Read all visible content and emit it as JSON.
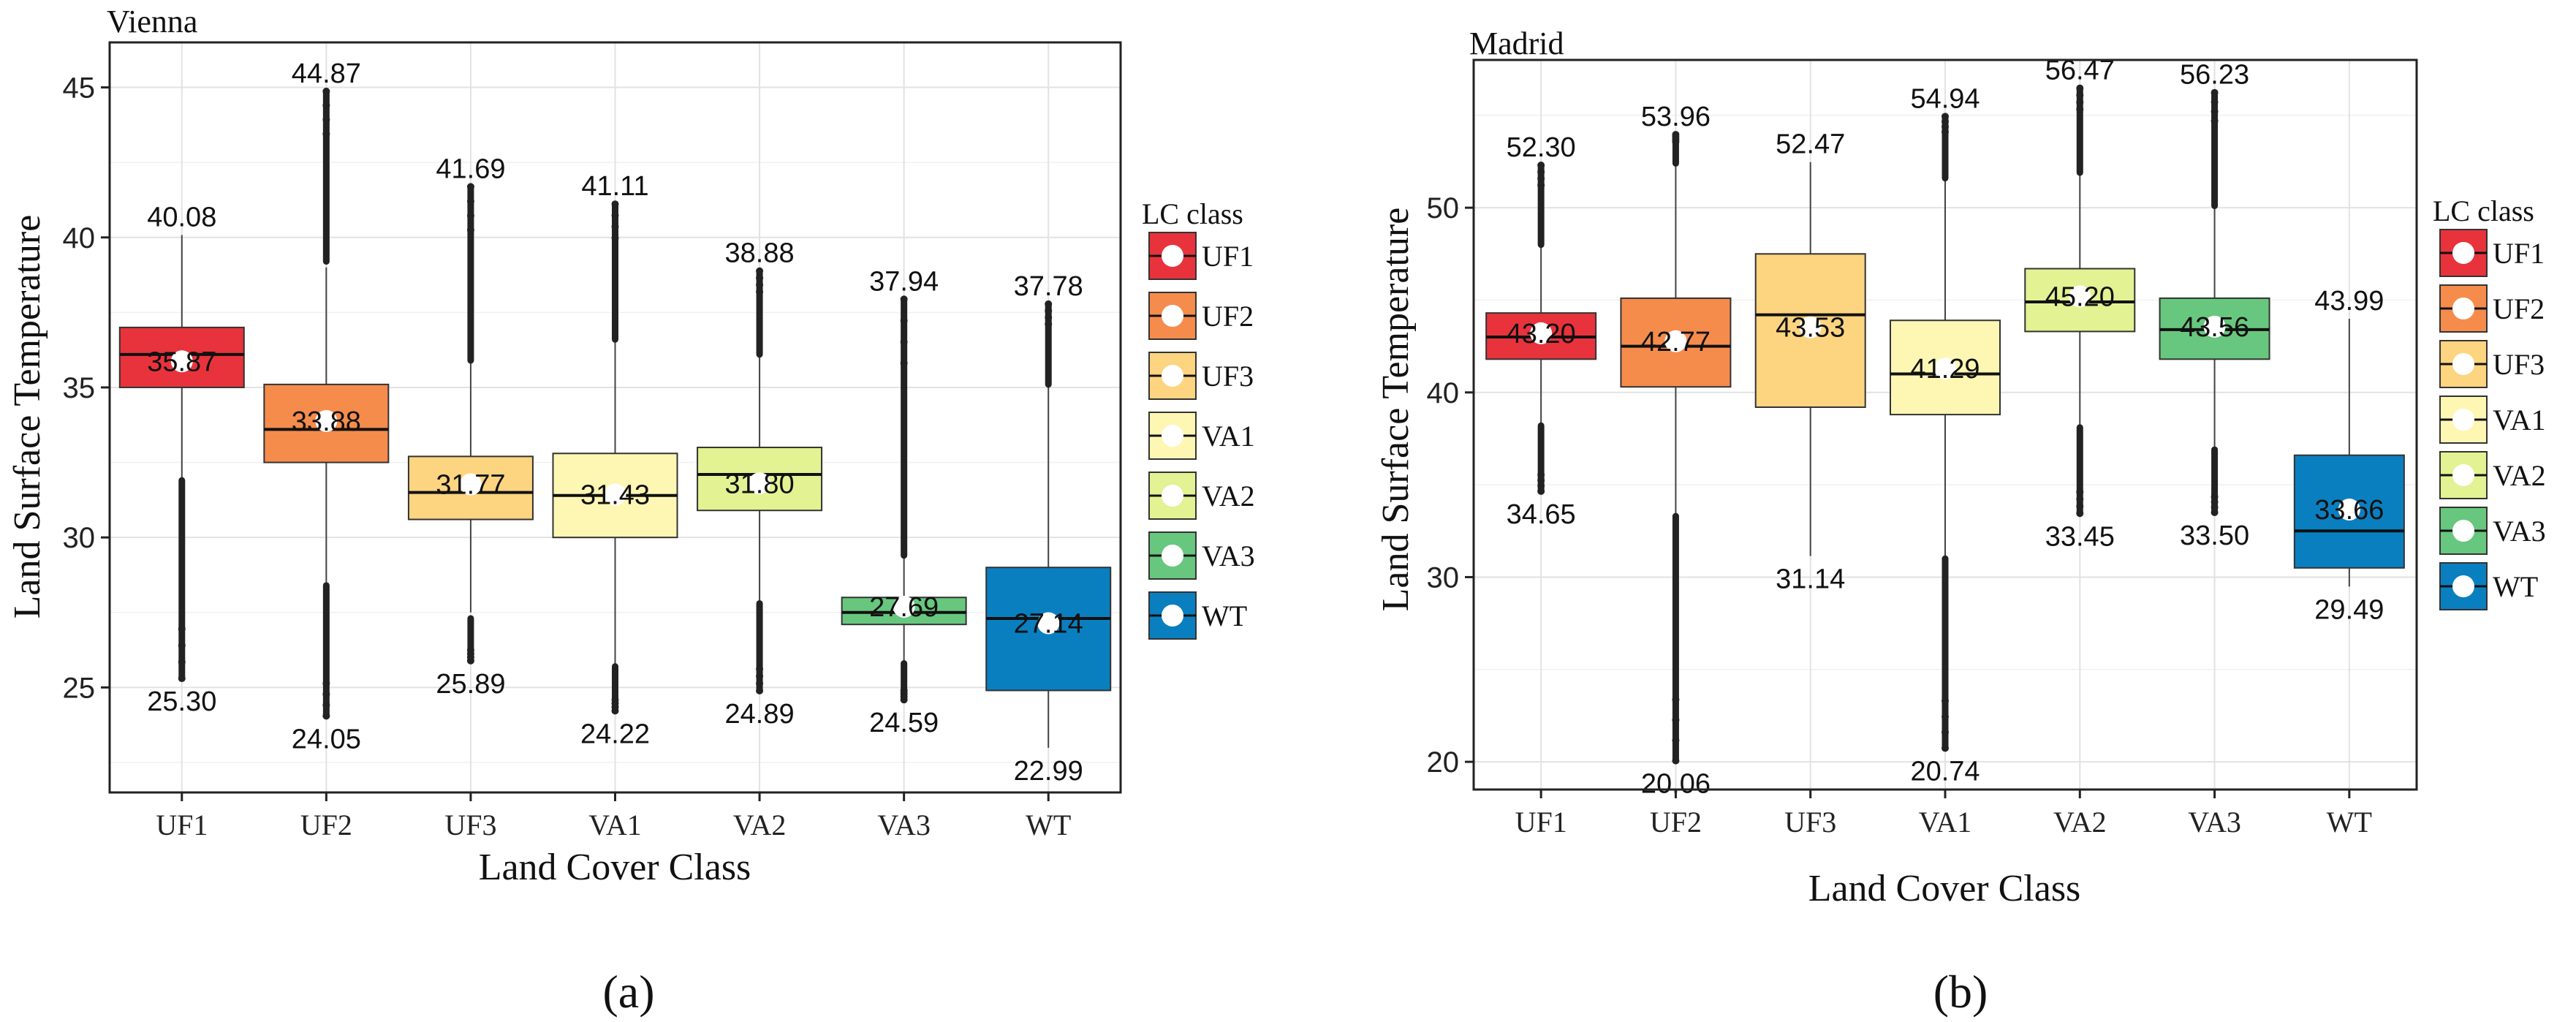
{
  "chart_data": [
    {
      "type": "box",
      "title": "Vienna",
      "xlabel": "Land Cover Class",
      "ylabel": "Land Surface Temperature",
      "ylim": [
        21.5,
        46.5
      ],
      "yticks": [
        25,
        30,
        35,
        40,
        45
      ],
      "grid": true,
      "categories": [
        "UF1",
        "UF2",
        "UF3",
        "VA1",
        "VA2",
        "VA3",
        "WT"
      ],
      "legend_title": "LC class",
      "legend_position": "right",
      "caption": "(a)",
      "colors": [
        "#e8333c",
        "#f58c4c",
        "#fdd47f",
        "#fdf7b3",
        "#e3f292",
        "#68c77e",
        "#0a7fc0"
      ],
      "boxes": [
        {
          "q1": 35.0,
          "median": 36.1,
          "q3": 37.0,
          "whisker_low": 32.0,
          "whisker_high": 40.08,
          "mean": 35.87,
          "min": 25.3,
          "max": 40.08,
          "outlier_low_from": 31.9,
          "outlier_low_to": 25.3,
          "outlier_high_from": null,
          "outlier_high_to": null
        },
        {
          "q1": 32.5,
          "median": 33.6,
          "q3": 35.1,
          "whisker_low": 28.5,
          "whisker_high": 39.0,
          "mean": 33.88,
          "min": 24.05,
          "max": 44.87,
          "outlier_low_from": 28.4,
          "outlier_low_to": 24.05,
          "outlier_high_from": 39.2,
          "outlier_high_to": 44.87
        },
        {
          "q1": 30.6,
          "median": 31.5,
          "q3": 32.7,
          "whisker_low": 27.5,
          "whisker_high": 35.8,
          "mean": 31.77,
          "min": 25.89,
          "max": 41.69,
          "outlier_low_from": 27.3,
          "outlier_low_to": 25.89,
          "outlier_high_from": 35.9,
          "outlier_high_to": 41.69
        },
        {
          "q1": 30.0,
          "median": 31.4,
          "q3": 32.8,
          "whisker_low": 25.8,
          "whisker_high": 36.5,
          "mean": 31.43,
          "min": 24.22,
          "max": 41.11,
          "outlier_low_from": 25.7,
          "outlier_low_to": 24.22,
          "outlier_high_from": 36.6,
          "outlier_high_to": 41.11
        },
        {
          "q1": 30.9,
          "median": 32.1,
          "q3": 33.0,
          "whisker_low": 27.9,
          "whisker_high": 36.0,
          "mean": 31.8,
          "min": 24.89,
          "max": 38.88,
          "outlier_low_from": 27.8,
          "outlier_low_to": 24.89,
          "outlier_high_from": 36.1,
          "outlier_high_to": 38.88
        },
        {
          "q1": 27.1,
          "median": 27.5,
          "q3": 28.0,
          "whisker_low": 25.9,
          "whisker_high": 29.3,
          "mean": 27.69,
          "min": 24.59,
          "max": 37.94,
          "outlier_low_from": 25.8,
          "outlier_low_to": 24.59,
          "outlier_high_from": 29.4,
          "outlier_high_to": 37.94
        },
        {
          "q1": 24.9,
          "median": 27.3,
          "q3": 29.0,
          "whisker_low": 22.99,
          "whisker_high": 35.0,
          "mean": 27.14,
          "min": 22.99,
          "max": 37.78,
          "outlier_low_from": null,
          "outlier_low_to": null,
          "outlier_high_from": 35.1,
          "outlier_high_to": 37.78
        }
      ]
    },
    {
      "type": "box",
      "title": "Madrid",
      "xlabel": "Land Cover Class",
      "ylabel": "Land Surface Temperature",
      "ylim": [
        18.5,
        58.0
      ],
      "yticks": [
        20,
        30,
        40,
        50
      ],
      "grid": true,
      "categories": [
        "UF1",
        "UF2",
        "UF3",
        "VA1",
        "VA2",
        "VA3",
        "WT"
      ],
      "legend_title": "LC class",
      "legend_position": "right",
      "caption": "(b)",
      "colors": [
        "#e8333c",
        "#f58c4c",
        "#fdd47f",
        "#fdf7b3",
        "#e3f292",
        "#68c77e",
        "#0a7fc0"
      ],
      "boxes": [
        {
          "q1": 41.8,
          "median": 43.0,
          "q3": 44.3,
          "whisker_low": 38.3,
          "whisker_high": 47.9,
          "mean": 43.2,
          "min": 34.65,
          "max": 52.3,
          "outlier_low_from": 38.2,
          "outlier_low_to": 34.65,
          "outlier_high_from": 48.0,
          "outlier_high_to": 52.3
        },
        {
          "q1": 40.3,
          "median": 42.5,
          "q3": 45.1,
          "whisker_low": 33.4,
          "whisker_high": 52.3,
          "mean": 42.77,
          "min": 20.06,
          "max": 53.96,
          "outlier_low_from": 33.3,
          "outlier_low_to": 20.06,
          "outlier_high_from": 52.4,
          "outlier_high_to": 53.96
        },
        {
          "q1": 39.2,
          "median": 44.2,
          "q3": 47.5,
          "whisker_low": 31.14,
          "whisker_high": 52.47,
          "mean": 43.53,
          "min": 31.14,
          "max": 52.47,
          "outlier_low_from": null,
          "outlier_low_to": null,
          "outlier_high_from": null,
          "outlier_high_to": null
        },
        {
          "q1": 38.8,
          "median": 41.0,
          "q3": 43.9,
          "whisker_low": 31.1,
          "whisker_high": 51.5,
          "mean": 41.29,
          "min": 20.74,
          "max": 54.94,
          "outlier_low_from": 31.0,
          "outlier_low_to": 20.74,
          "outlier_high_from": 51.6,
          "outlier_high_to": 54.94
        },
        {
          "q1": 43.3,
          "median": 44.9,
          "q3": 46.7,
          "whisker_low": 38.2,
          "whisker_high": 51.8,
          "mean": 45.2,
          "min": 33.45,
          "max": 56.47,
          "outlier_low_from": 38.1,
          "outlier_low_to": 33.45,
          "outlier_high_from": 51.9,
          "outlier_high_to": 56.47
        },
        {
          "q1": 41.8,
          "median": 43.4,
          "q3": 45.1,
          "whisker_low": 37.0,
          "whisker_high": 50.0,
          "mean": 43.56,
          "min": 33.5,
          "max": 56.23,
          "outlier_low_from": 36.9,
          "outlier_low_to": 33.5,
          "outlier_high_from": 50.1,
          "outlier_high_to": 56.23
        },
        {
          "q1": 30.5,
          "median": 32.5,
          "q3": 36.6,
          "whisker_low": 29.49,
          "whisker_high": 43.99,
          "mean": 33.66,
          "min": 29.49,
          "max": 43.99,
          "outlier_low_from": null,
          "outlier_low_to": null,
          "outlier_high_from": null,
          "outlier_high_to": null
        }
      ]
    }
  ]
}
